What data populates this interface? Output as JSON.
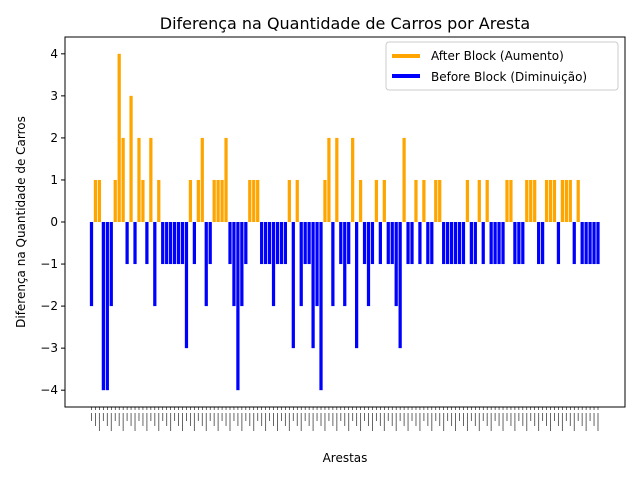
{
  "chart_data": {
    "type": "bar",
    "title": "Diferença na Quantidade de Carros por Aresta",
    "xlabel": "Arestas",
    "ylabel": "Diferença na Quantidade de Carros",
    "ylim": [
      -4.4,
      4.4
    ],
    "yticks": [
      -4,
      -3,
      -2,
      -1,
      0,
      1,
      2,
      3,
      4
    ],
    "grid": false,
    "legend_position": "upper-right",
    "x_tick_labels_note": "unreadable tiny rotated edge ids",
    "series": [
      {
        "name": "After Block (Aumento)",
        "color": "#ffa500"
      },
      {
        "name": "Before Block (Diminuição)",
        "color": "#0000ff"
      }
    ],
    "values": [
      -2,
      1,
      1,
      -4,
      -4,
      -2,
      1,
      4,
      2,
      -1,
      3,
      -1,
      2,
      1,
      -1,
      2,
      -2,
      1,
      -1,
      -1,
      -1,
      -1,
      -1,
      -1,
      -3,
      1,
      -1,
      1,
      2,
      -2,
      -1,
      1,
      1,
      1,
      2,
      -1,
      -2,
      -4,
      -2,
      -1,
      1,
      1,
      1,
      -1,
      -1,
      -1,
      -2,
      -1,
      -1,
      -1,
      1,
      -3,
      1,
      -2,
      -1,
      -1,
      -3,
      -2,
      -4,
      1,
      2,
      -2,
      2,
      -1,
      -2,
      -1,
      2,
      -3,
      1,
      -1,
      -2,
      -1,
      1,
      -1,
      1,
      -1,
      -1,
      -2,
      -3,
      2,
      -1,
      -1,
      1,
      -1,
      1,
      -1,
      -1,
      1,
      1,
      -1,
      -1,
      -1,
      -1,
      -1,
      -1,
      1,
      -1,
      -1,
      1,
      -1,
      1,
      -1,
      -1,
      -1,
      -1,
      1,
      1,
      -1,
      -1,
      -1,
      1,
      1,
      1,
      -1,
      -1,
      1,
      1,
      1,
      -1,
      1,
      1,
      1,
      -1,
      1,
      -1,
      -1,
      -1,
      -1,
      -1
    ]
  }
}
